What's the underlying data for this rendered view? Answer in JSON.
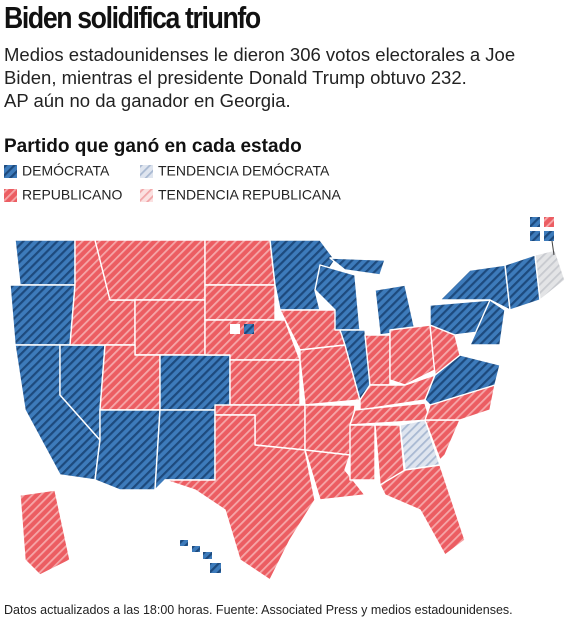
{
  "title": "Biden solidifica triunfo",
  "subtitle": [
    "Medios estadounidenses le dieron 306 votos electorales a Joe",
    "Biden, mientras el presidente Donald Trump obtuvo 232.",
    "AP aún no da ganador en Georgia."
  ],
  "legend": {
    "title": "Partido que ganó en cada estado",
    "items": [
      "DEMÓCRATA",
      "TENDENCIA DEMÓCRATA",
      "REPUBLICANO",
      "TENDENCIA REPUBLICANA"
    ]
  },
  "footnote": "Datos actualizados a las 18:00 horas. Fuente: Associated Press y medios estadounidenses."
}
